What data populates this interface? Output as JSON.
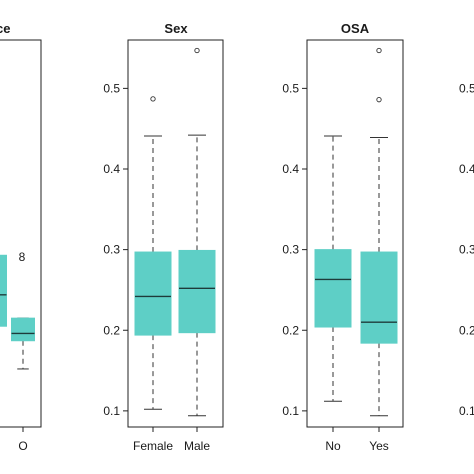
{
  "chart_data": [
    {
      "type": "box",
      "title": "ce",
      "ylim": [
        0.08,
        0.56
      ],
      "yticks": [],
      "categories": [
        "",
        "O"
      ],
      "boxes": [
        {
          "category": "",
          "whisker_low": null,
          "q1": 0.205,
          "median": 0.244,
          "q3": 0.293,
          "whisker_high": null,
          "outliers": []
        },
        {
          "category": "O",
          "whisker_low": 0.152,
          "q1": 0.187,
          "median": 0.196,
          "q3": 0.215,
          "whisker_high": 0.215,
          "outliers": []
        }
      ],
      "annotations": [
        {
          "text": "8",
          "x": 0.5,
          "y": 0.291
        }
      ],
      "color": "#5ecfc6",
      "grid": false
    },
    {
      "type": "box",
      "title": "Sex",
      "ylim": [
        0.08,
        0.56
      ],
      "yticks": [
        0.1,
        0.2,
        0.3,
        0.4,
        0.5
      ],
      "categories": [
        "Female",
        "Male"
      ],
      "boxes": [
        {
          "category": "Female",
          "whisker_low": 0.102,
          "q1": 0.194,
          "median": 0.242,
          "q3": 0.297,
          "whisker_high": 0.441,
          "outliers": [
            0.487
          ]
        },
        {
          "category": "Male",
          "whisker_low": 0.094,
          "q1": 0.197,
          "median": 0.252,
          "q3": 0.299,
          "whisker_high": 0.442,
          "outliers": [
            0.547
          ]
        }
      ],
      "color": "#5ecfc6",
      "grid": false
    },
    {
      "type": "box",
      "title": "OSA",
      "ylim": [
        0.08,
        0.56
      ],
      "yticks": [
        0.1,
        0.2,
        0.3,
        0.4,
        0.5
      ],
      "categories": [
        "No",
        "Yes"
      ],
      "boxes": [
        {
          "category": "No",
          "whisker_low": 0.112,
          "q1": 0.204,
          "median": 0.263,
          "q3": 0.3,
          "whisker_high": 0.441,
          "outliers": []
        },
        {
          "category": "Yes",
          "whisker_low": 0.094,
          "q1": 0.184,
          "median": 0.21,
          "q3": 0.297,
          "whisker_high": 0.439,
          "outliers": [
            0.486,
            0.547
          ]
        }
      ],
      "color": "#5ecfc6",
      "grid": false
    },
    {
      "type": "box",
      "title": "",
      "ylim": [
        0.08,
        0.56
      ],
      "yticks": [
        0.1,
        0.2,
        0.3,
        0.4,
        0.5
      ],
      "yticklabels": [
        "0.1",
        "0.2",
        "0.3",
        "0.4",
        "0.5"
      ],
      "categories": [],
      "boxes": [],
      "color": "#5ecfc6",
      "grid": false
    }
  ]
}
